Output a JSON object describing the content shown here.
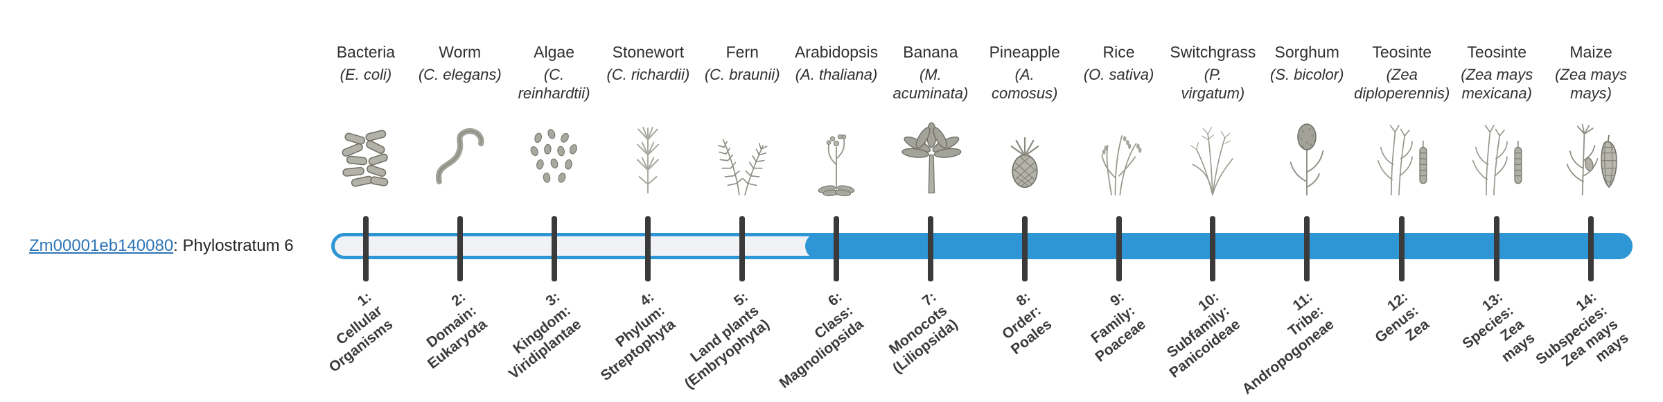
{
  "gene": {
    "id": "Zm00001eb140080",
    "label_suffix": ": Phylostratum 6",
    "phylostratum": 6
  },
  "bar": {
    "total_strata": 14,
    "filled_from_stratum": 6,
    "filled_to_stratum": 14
  },
  "colors": {
    "accent_blue": "#2e96d4",
    "bar_track": "#f1f2f5",
    "tick": "#3a3a3a",
    "link_blue": "#2e75b6",
    "illustration_gray": "#9a9a90"
  },
  "columns": [
    {
      "name": "Bacteria",
      "species": "(E. coli)",
      "icon": "bacteria",
      "tick_label": "1:\nCellular\nOrganisms"
    },
    {
      "name": "Worm",
      "species": "(C. elegans)",
      "icon": "worm",
      "tick_label": "2:\nDomain:\nEukaryota"
    },
    {
      "name": "Algae",
      "species": "(C.\nreinhardtii)",
      "icon": "algae",
      "tick_label": "3:\nKingdom:\nViridiplantae"
    },
    {
      "name": "Stonewort",
      "species": "(C. richardii)",
      "icon": "stonewort",
      "tick_label": "4:\nPhylum:\nStreptophyta"
    },
    {
      "name": "Fern",
      "species": "(C. braunii)",
      "icon": "fern",
      "tick_label": "5:\nLand plants\n(Embryophyta)"
    },
    {
      "name": "Arabidopsis",
      "species": "(A. thaliana)",
      "icon": "arabidopsis",
      "tick_label": "6:\nClass:\nMagnoliopsida"
    },
    {
      "name": "Banana",
      "species": "(M.\nacuminata)",
      "icon": "banana",
      "tick_label": "7:\nMonocots\n(Liliopsida)"
    },
    {
      "name": "Pineapple",
      "species": "(A.\ncomosus)",
      "icon": "pineapple",
      "tick_label": "8:\nOrder:\nPoales"
    },
    {
      "name": "Rice",
      "species": "(O. sativa)",
      "icon": "rice",
      "tick_label": "9:\nFamily:\nPoaceae"
    },
    {
      "name": "Switchgrass",
      "species": "(P.\nvirgatum)",
      "icon": "switchgrass",
      "tick_label": "10:\nSubfamily:\nPanicoideae"
    },
    {
      "name": "Sorghum",
      "species": "(S. bicolor)",
      "icon": "sorghum",
      "tick_label": "11:\nTribe:\nAndropogoneae"
    },
    {
      "name": "Teosinte",
      "species": "(Zea\ndiploperennis)",
      "icon": "teosinte",
      "tick_label": "12:\nGenus:\nZea"
    },
    {
      "name": "Teosinte",
      "species": "(Zea mays\nmexicana)",
      "icon": "teosinte",
      "tick_label": "13:\nSpecies:\nZea\nmays"
    },
    {
      "name": "Maize",
      "species": "(Zea mays\nmays)",
      "icon": "maize",
      "tick_label": "14:\nSubspecies:\nZea mays\nmays"
    }
  ]
}
